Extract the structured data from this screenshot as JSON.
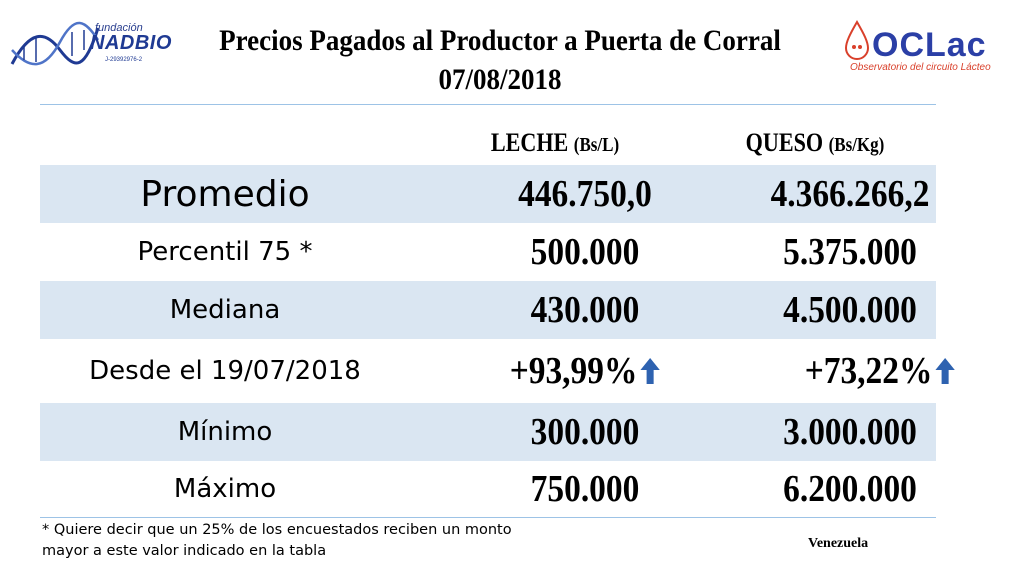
{
  "logo_left": {
    "small": "fundación",
    "big": "NADBIO",
    "reg": "J-29392976-2"
  },
  "logo_right": {
    "name": "OCLac",
    "sub": "Observatorio del circuito Lácteo"
  },
  "title": {
    "line1": "Precios Pagados al Productor a Puerta de Corral",
    "line2": "07/08/2018"
  },
  "columns": [
    {
      "name": "LECHE",
      "unit": "(Bs/L)"
    },
    {
      "name": "QUESO",
      "unit": "(Bs/Kg)"
    }
  ],
  "rows": [
    {
      "label": "Promedio",
      "leche": "446.750,0",
      "queso": "4.366.266,2"
    },
    {
      "label": "Percentil 75 *",
      "leche": "500.000",
      "queso": "5.375.000"
    },
    {
      "label": "Mediana",
      "leche": "430.000",
      "queso": "4.500.000"
    },
    {
      "label": "Desde el 19/07/2018",
      "leche": "+93,99%",
      "queso": "+73,22%"
    },
    {
      "label": "Mínimo",
      "leche": "300.000",
      "queso": "3.000.000"
    },
    {
      "label": "Máximo",
      "leche": "750.000",
      "queso": "6.200.000"
    }
  ],
  "colors": {
    "arrow": "#2e62b0",
    "row_shade": "#dae6f2",
    "rule": "#9dc3e6"
  },
  "icons": {
    "trend": "arrow-up-icon"
  },
  "footnote": {
    "line1": "* Quiere decir que un 25% de los encuestados reciben un monto",
    "line2": "mayor a este valor indicado en la tabla"
  },
  "country": "Venezuela"
}
